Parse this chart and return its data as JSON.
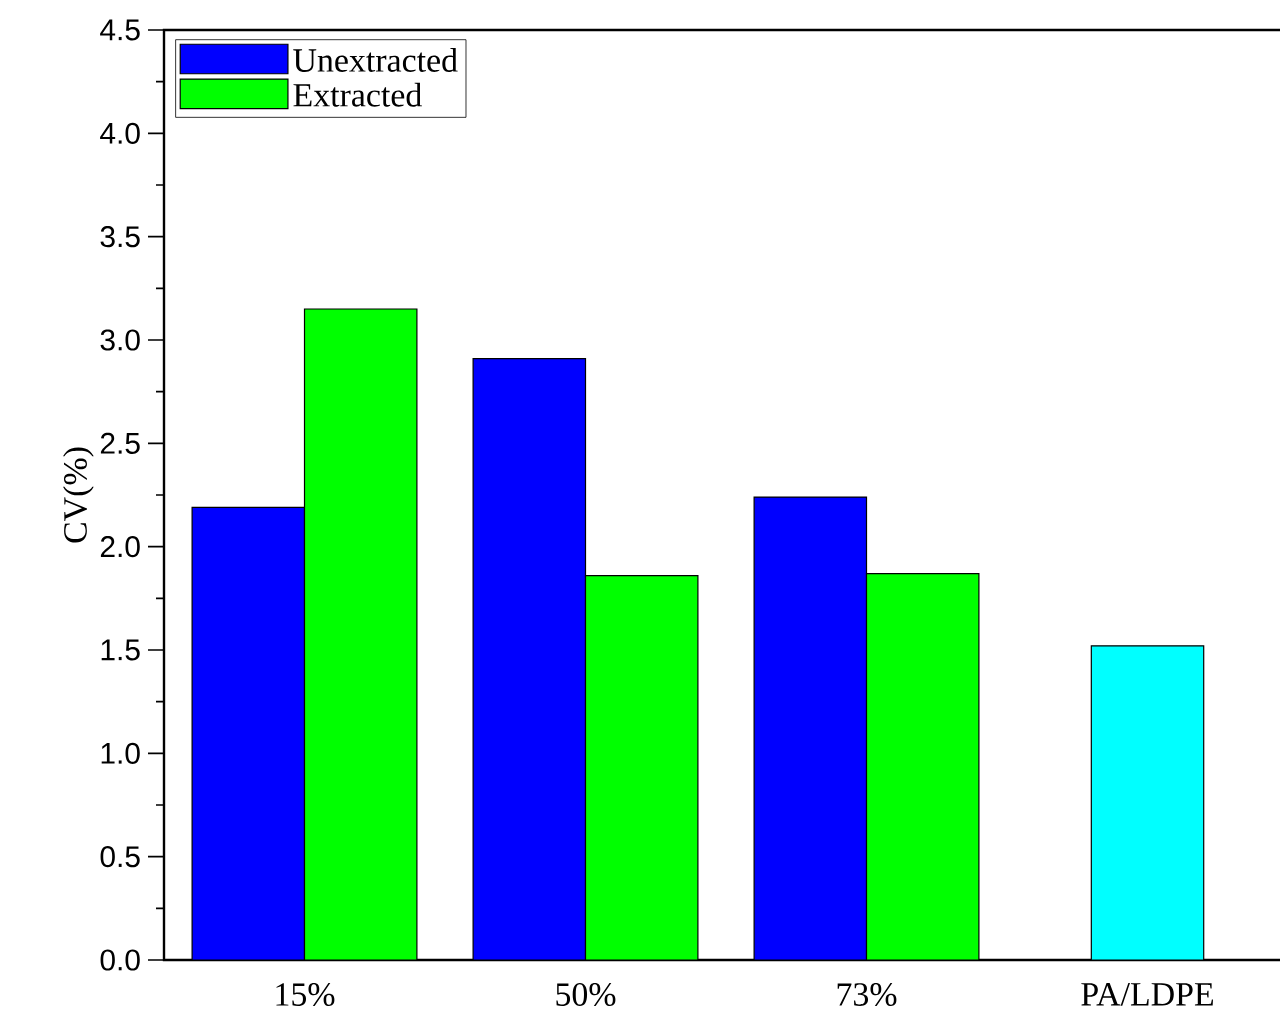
{
  "chart_data": {
    "type": "bar",
    "ylabel": "CV(%)",
    "categories": [
      "15%",
      "50%",
      "73%",
      "PA/LDPE"
    ],
    "series": [
      {
        "name": "Unextracted",
        "color": "#0000ff",
        "values": [
          2.19,
          2.91,
          2.24,
          null
        ]
      },
      {
        "name": "Extracted",
        "color": "#00ff00",
        "values": [
          3.15,
          1.86,
          1.87,
          null
        ]
      },
      {
        "color": "#00ffff",
        "values": [
          null,
          null,
          null,
          1.52
        ]
      }
    ],
    "ylim": [
      0,
      4.5
    ],
    "yticks": [
      {
        "value": 0,
        "label": "0.0"
      },
      {
        "value": 0.5,
        "label": "0.5"
      },
      {
        "value": 1,
        "label": "1.0"
      },
      {
        "value": 1.5,
        "label": "1.5"
      },
      {
        "value": 2,
        "label": "2.0"
      },
      {
        "value": 2.5,
        "label": "2.5"
      },
      {
        "value": 3,
        "label": "3.0"
      },
      {
        "value": 3.5,
        "label": "3.5"
      },
      {
        "value": 4,
        "label": "4.0"
      },
      {
        "value": 4.5,
        "label": "4.5"
      }
    ],
    "legend": "top left",
    "grid": false
  }
}
